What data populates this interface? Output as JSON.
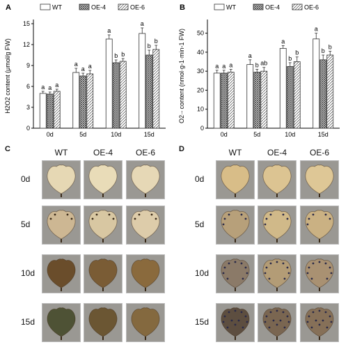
{
  "panels": {
    "A": "A",
    "B": "B",
    "C": "C",
    "D": "D"
  },
  "legend": {
    "wt": "WT",
    "oe4": "OE-4",
    "oe6": "OE-6"
  },
  "chart_data": [
    {
      "type": "bar",
      "panel": "A",
      "categories": [
        "0d",
        "5d",
        "10d",
        "15d"
      ],
      "ylabel": "H2O2 content (μmol/g FW)",
      "ylim": [
        0,
        15
      ],
      "yticks": [
        0,
        3,
        6,
        9,
        12,
        15
      ],
      "series": [
        {
          "name": "WT",
          "values": [
            5.0,
            8.0,
            12.8,
            13.6
          ],
          "errors": [
            0.3,
            0.6,
            0.6,
            0.8
          ],
          "letters": [
            "a",
            "a",
            "a",
            "a"
          ],
          "pattern": "open"
        },
        {
          "name": "OE-4",
          "values": [
            4.9,
            7.5,
            9.4,
            10.5
          ],
          "errors": [
            0.3,
            0.4,
            0.4,
            0.7
          ],
          "letters": [
            "a",
            "a",
            "b",
            "b"
          ],
          "pattern": "cross"
        },
        {
          "name": "OE-6",
          "values": [
            5.3,
            7.8,
            9.6,
            11.3
          ],
          "errors": [
            0.3,
            0.5,
            0.4,
            0.6
          ],
          "letters": [
            "a",
            "a",
            "b",
            "b"
          ],
          "pattern": "hatch"
        }
      ]
    },
    {
      "type": "bar",
      "panel": "B",
      "categories": [
        "0d",
        "5d",
        "10d",
        "15d"
      ],
      "ylabel": "O2·- content (nmol·g-1·min-1 FW)",
      "ylim": [
        0,
        55
      ],
      "yticks": [
        0,
        10,
        20,
        30,
        40,
        50
      ],
      "series": [
        {
          "name": "WT",
          "values": [
            29,
            33.5,
            42,
            47
          ],
          "errors": [
            1.5,
            2.5,
            1.5,
            3
          ],
          "letters": [
            "a",
            "a",
            "a",
            "a"
          ],
          "pattern": "open"
        },
        {
          "name": "OE-4",
          "values": [
            29,
            29.5,
            32.5,
            36
          ],
          "errors": [
            1.5,
            1.5,
            2.0,
            2.5
          ],
          "letters": [
            "a",
            "b",
            "b",
            "b"
          ],
          "pattern": "cross"
        },
        {
          "name": "OE-6",
          "values": [
            29.5,
            30,
            35,
            38.5
          ],
          "errors": [
            1.5,
            2.0,
            2.5,
            2.0
          ],
          "letters": [
            "a",
            "ab",
            "b",
            "b"
          ],
          "pattern": "hatch"
        }
      ]
    }
  ],
  "photos": {
    "C": {
      "columns": [
        "WT",
        "OE-4",
        "OE-6"
      ],
      "rows": [
        "0d",
        "5d",
        "10d",
        "15d"
      ],
      "stain_colors": [
        [
          "#e6d8b4",
          "#e9dcb8",
          "#e6d8b6"
        ],
        [
          "#cdb793",
          "#d8c7a2",
          "#ddccaa"
        ],
        [
          "#6a4d2b",
          "#7a5c35",
          "#8a6a3d"
        ],
        [
          "#4e5235",
          "#6b5633",
          "#84693f"
        ]
      ]
    },
    "D": {
      "columns": [
        "WT",
        "OE-4",
        "OE-6"
      ],
      "rows": [
        "0d",
        "5d",
        "10d",
        "15d"
      ],
      "stain_colors": [
        [
          "#d8bd88",
          "#dcc492",
          "#dec796"
        ],
        [
          "#b7a07a",
          "#d0b989",
          "#cab183"
        ],
        [
          "#8b7a68",
          "#b39c76",
          "#a99172"
        ],
        [
          "#5d4e40",
          "#7a6651",
          "#867058"
        ]
      ]
    }
  }
}
